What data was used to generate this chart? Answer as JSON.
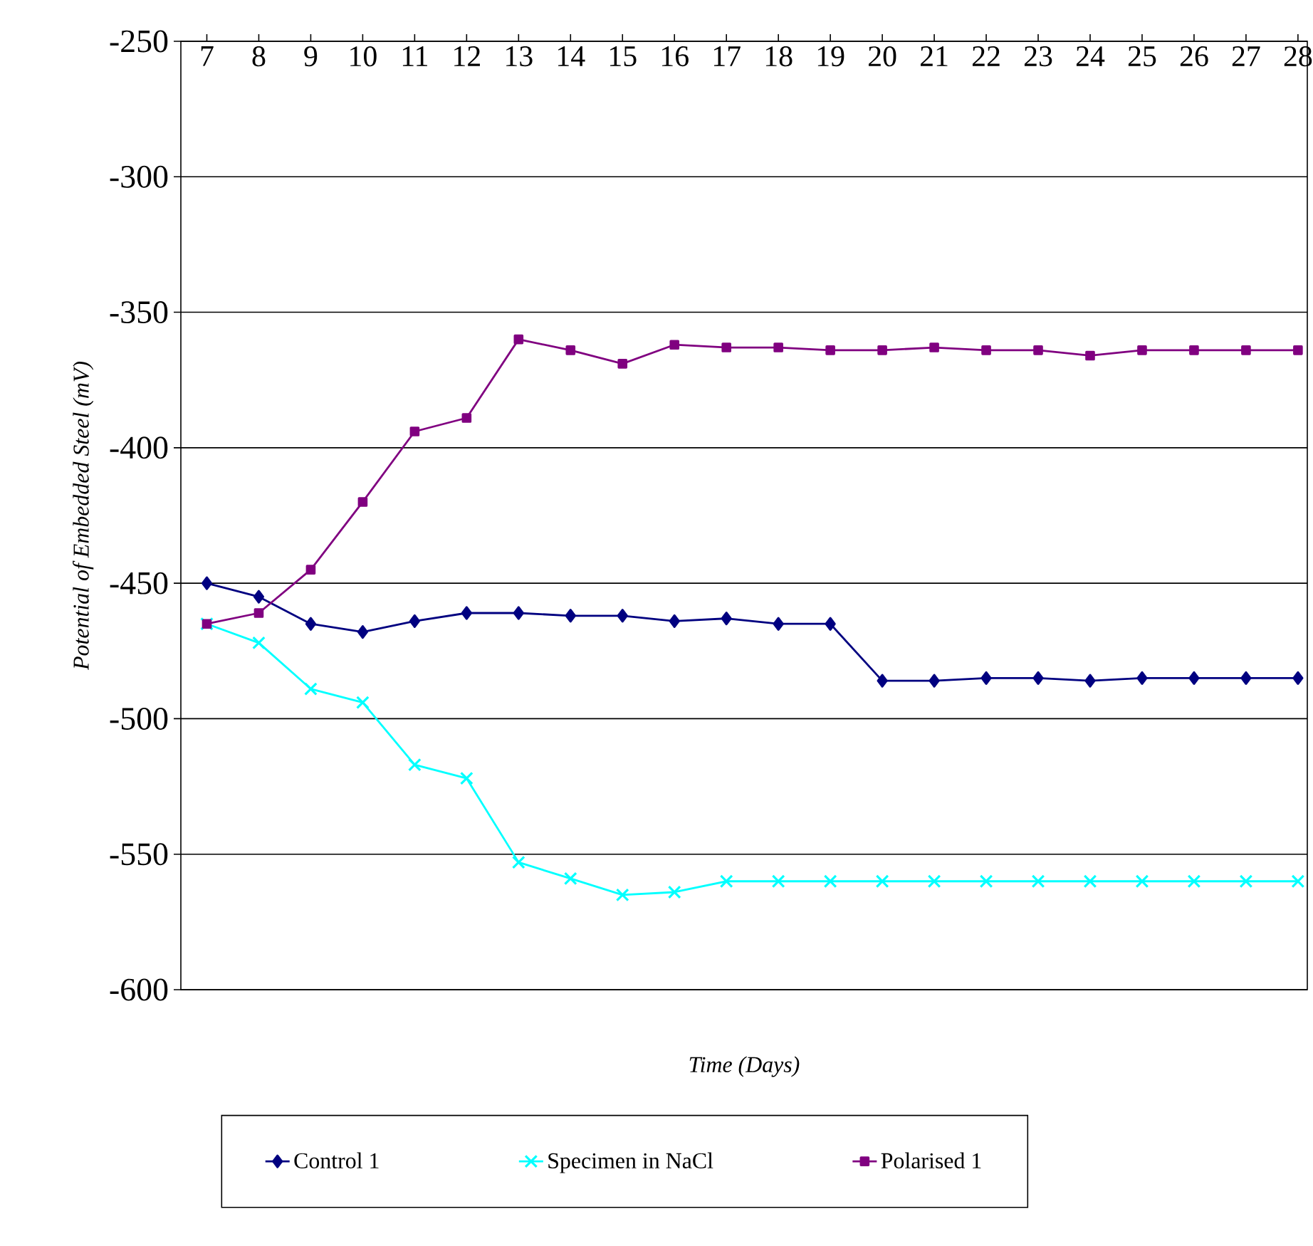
{
  "chart_data": {
    "type": "line",
    "xlabel": "Time (Days)",
    "ylabel": "Potential of Embedded Steel  (mV)",
    "categories": [
      "7",
      "8",
      "9",
      "10",
      "11",
      "12",
      "13",
      "14",
      "15",
      "16",
      "17",
      "18",
      "19",
      "20",
      "21",
      "22",
      "23",
      "24",
      "25",
      "26",
      "27",
      "28"
    ],
    "series": [
      {
        "name": "Control 1",
        "color": "#000080",
        "marker": "diamond",
        "values": [
          -450,
          -455,
          -465,
          -468,
          -464,
          -461,
          -461,
          -462,
          -462,
          -464,
          -463,
          -465,
          -465,
          -486,
          -486,
          -485,
          -485,
          -486,
          -485,
          -485,
          -485,
          -485
        ]
      },
      {
        "name": "Specimen in NaCl",
        "color": "#00ffff",
        "marker": "cross",
        "values": [
          -465,
          -472,
          -489,
          -494,
          -517,
          -522,
          -553,
          -559,
          -565,
          -564,
          -560,
          -560,
          -560,
          -560,
          -560,
          -560,
          -560,
          -560,
          -560,
          -560,
          -560,
          -560
        ]
      },
      {
        "name": "Polarised 1",
        "color": "#800080",
        "marker": "square",
        "values": [
          -465,
          -461,
          -445,
          -420,
          -394,
          -389,
          -360,
          -364,
          -369,
          -362,
          -363,
          -363,
          -364,
          -364,
          -363,
          -364,
          -364,
          -366,
          -364,
          -364,
          -364,
          -364
        ]
      }
    ],
    "ylim": [
      -600,
      -250
    ],
    "yticks": [
      -250,
      -300,
      -350,
      -400,
      -450,
      -500,
      -550,
      -600
    ],
    "grid": "y",
    "legend": "bottom",
    "line_style": "solid"
  }
}
